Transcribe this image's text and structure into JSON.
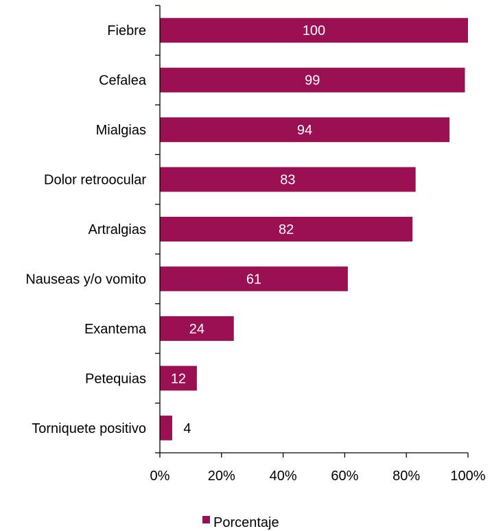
{
  "chart_data": {
    "type": "bar",
    "orientation": "horizontal",
    "categories": [
      "Fiebre",
      "Cefalea",
      "Mialgias",
      "Dolor retroocular",
      "Artralgias",
      "Nauseas y/o vomito",
      "Exantema",
      "Petequias",
      "Torniquete positivo"
    ],
    "series": [
      {
        "name": "Porcentaje",
        "values": [
          100,
          99,
          94,
          83,
          82,
          61,
          24,
          12,
          4
        ],
        "color": "#9B1053"
      }
    ],
    "xlim": [
      0,
      100
    ],
    "x_ticks": [
      0,
      20,
      40,
      60,
      80,
      100
    ],
    "x_tick_labels": [
      "0%",
      "20%",
      "40%",
      "60%",
      "80%",
      "100%"
    ],
    "grid": false,
    "legend": "bottom"
  }
}
